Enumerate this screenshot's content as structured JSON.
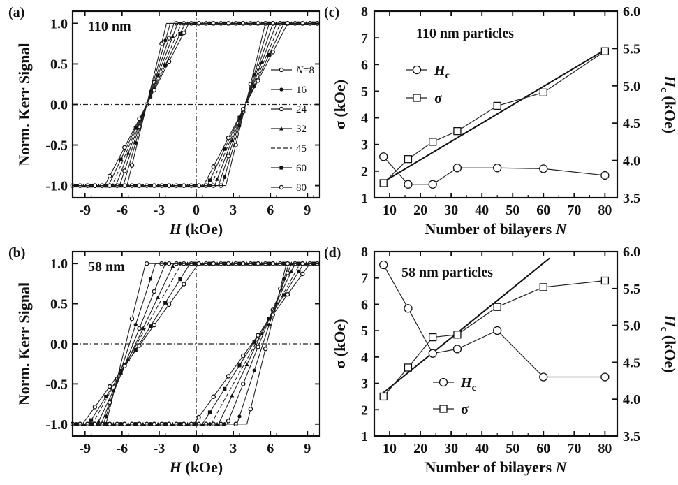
{
  "chart_data": [
    {
      "type": "line",
      "panel_label": "(a)",
      "annotation": "110 nm",
      "xlabel_italic": "H",
      "xlabel_rest": " (kOe)",
      "ylabel": "Norm. Kerr Signal",
      "xlim": [
        -10,
        10
      ],
      "ylim": [
        -1.15,
        1.15
      ],
      "xticks": [
        -9,
        -6,
        -3,
        0,
        3,
        6,
        9
      ],
      "xtick_labels": [
        "-9",
        "-6",
        "-3",
        "0",
        "3",
        "6",
        "9"
      ],
      "yticks": [
        -1.0,
        -0.5,
        0.0,
        0.5,
        1.0
      ],
      "ytick_labels": [
        "-1.0",
        "-0.5",
        "0.0",
        "0.5",
        "1.0"
      ],
      "legend": {
        "position": "lower-right",
        "entries": [
          {
            "label": "N=8",
            "italic_prefix": "N",
            "rest": "=8",
            "marker": "open-circle",
            "dash": "none"
          },
          {
            "label": "16",
            "marker": "filled-circle",
            "dash": "none"
          },
          {
            "label": "24",
            "marker": "open-circle",
            "dash": "none"
          },
          {
            "label": "32",
            "marker": "filled-triangle",
            "dash": "none"
          },
          {
            "label": "45",
            "marker": "none",
            "dash": "dashed"
          },
          {
            "label": "60",
            "marker": "filled-square",
            "dash": "none"
          },
          {
            "label": "80",
            "marker": "open-circle",
            "dash": "none"
          }
        ]
      },
      "series": [
        {
          "name": "N=8",
          "hc": 4.0,
          "slope_width": 1.6
        },
        {
          "name": "16",
          "hc": 4.0,
          "slope_width": 1.9
        },
        {
          "name": "24",
          "hc": 4.0,
          "slope_width": 2.2
        },
        {
          "name": "32",
          "hc": 4.0,
          "slope_width": 2.5
        },
        {
          "name": "45",
          "hc": 4.0,
          "slope_width": 2.8
        },
        {
          "name": "60",
          "hc": 4.0,
          "slope_width": 3.1
        },
        {
          "name": "80",
          "hc": 4.0,
          "slope_width": 3.4
        }
      ]
    },
    {
      "type": "line",
      "panel_label": "(b)",
      "annotation": "58 nm",
      "xlabel_italic": "H",
      "xlabel_rest": " (kOe)",
      "ylabel": "Norm. Kerr Signal",
      "xlim": [
        -10,
        10
      ],
      "ylim": [
        -1.15,
        1.15
      ],
      "xticks": [
        -9,
        -6,
        -3,
        0,
        3,
        6,
        9
      ],
      "xtick_labels": [
        "-9",
        "-6",
        "-3",
        "0",
        "3",
        "6",
        "9"
      ],
      "yticks": [
        -1.0,
        -0.5,
        0.0,
        0.5,
        1.0
      ],
      "ytick_labels": [
        "-1.0",
        "-0.5",
        "0.0",
        "0.5",
        "1.0"
      ],
      "series": [
        {
          "name": "8",
          "hc": 5.7,
          "slope_width": 1.6
        },
        {
          "name": "16",
          "hc": 5.4,
          "slope_width": 2.1
        },
        {
          "name": "24",
          "hc": 5.1,
          "slope_width": 2.6
        },
        {
          "name": "32",
          "hc": 4.9,
          "slope_width": 3.1
        },
        {
          "name": "45",
          "hc": 4.8,
          "slope_width": 3.6
        },
        {
          "name": "60",
          "hc": 4.6,
          "slope_width": 4.1
        },
        {
          "name": "80",
          "hc": 4.5,
          "slope_width": 4.7
        }
      ]
    },
    {
      "type": "line",
      "panel_label": "(c)",
      "annotation": "110 nm particles",
      "xlabel": "Number of bilayers ",
      "xlabel_italic": "N",
      "ylabel": "σ (kOe)",
      "ylabel_right_italic": "H",
      "ylabel_right_sub": "c",
      "ylabel_right_rest": " (kOe)",
      "xlim": [
        5,
        84
      ],
      "ylim": [
        1,
        8
      ],
      "ylim_right": [
        3.5,
        6.0
      ],
      "xticks": [
        10,
        20,
        30,
        40,
        50,
        60,
        70,
        80
      ],
      "xtick_labels": [
        "10",
        "20",
        "30",
        "40",
        "50",
        "60",
        "70",
        "80"
      ],
      "yticks": [
        1,
        2,
        3,
        4,
        5,
        6,
        7,
        8
      ],
      "ytick_labels": [
        "1",
        "2",
        "3",
        "4",
        "5",
        "6",
        "7",
        "8"
      ],
      "yticks_right": [
        3.5,
        4.0,
        4.5,
        5.0,
        5.5,
        6.0
      ],
      "ytick_labels_right": [
        "3.5",
        "4.0",
        "4.5",
        "5.0",
        "5.5",
        "6.0"
      ],
      "legend": {
        "position": "upper-left",
        "entries": [
          {
            "italic": "H",
            "sub": "c",
            "marker": "circle"
          },
          {
            "label": "σ",
            "marker": "square"
          }
        ]
      },
      "x": [
        8,
        16,
        24,
        32,
        45,
        60,
        80
      ],
      "series": [
        {
          "name": "Hc",
          "axis": "right",
          "marker": "circle",
          "values": [
            4.05,
            3.68,
            3.68,
            3.9,
            3.9,
            3.89,
            3.8
          ]
        },
        {
          "name": "σ",
          "axis": "left",
          "marker": "square",
          "values": [
            1.55,
            2.45,
            3.1,
            3.5,
            4.45,
            4.95,
            6.5
          ]
        }
      ],
      "fit_line": {
        "axis": "left",
        "x": [
          8,
          80
        ],
        "y": [
          1.6,
          6.55
        ]
      }
    },
    {
      "type": "line",
      "panel_label": "(d)",
      "annotation": "58 nm particles",
      "xlabel": "Number of bilayers ",
      "xlabel_italic": "N",
      "ylabel": "σ (kOe)",
      "ylabel_right_italic": "H",
      "ylabel_right_sub": "c",
      "ylabel_right_rest": " (kOe)",
      "xlim": [
        5,
        84
      ],
      "ylim": [
        1,
        8
      ],
      "ylim_right": [
        3.5,
        6.0
      ],
      "xticks": [
        10,
        20,
        30,
        40,
        50,
        60,
        70,
        80
      ],
      "xtick_labels": [
        "10",
        "20",
        "30",
        "40",
        "50",
        "60",
        "70",
        "80"
      ],
      "yticks": [
        1,
        2,
        3,
        4,
        5,
        6,
        7,
        8
      ],
      "ytick_labels": [
        "1",
        "2",
        "3",
        "4",
        "5",
        "6",
        "7",
        "8"
      ],
      "yticks_right": [
        3.5,
        4.0,
        4.5,
        5.0,
        5.5,
        6.0
      ],
      "ytick_labels_right": [
        "3.5",
        "4.0",
        "4.5",
        "5.0",
        "5.5",
        "6.0"
      ],
      "legend": {
        "position": "lower-left",
        "entries": [
          {
            "italic": "H",
            "sub": "c",
            "marker": "circle"
          },
          {
            "label": "σ",
            "marker": "square"
          }
        ]
      },
      "x": [
        8,
        16,
        24,
        32,
        45,
        60,
        80
      ],
      "series": [
        {
          "name": "Hc",
          "axis": "right",
          "marker": "circle",
          "values": [
            5.82,
            5.23,
            4.62,
            4.68,
            4.93,
            4.3,
            4.3
          ]
        },
        {
          "name": "σ",
          "axis": "left",
          "marker": "square",
          "values": [
            2.5,
            3.6,
            4.75,
            4.85,
            5.9,
            6.65,
            6.9
          ]
        }
      ],
      "fit_line": {
        "axis": "left",
        "x": [
          8,
          62
        ],
        "y": [
          2.65,
          7.75
        ]
      }
    }
  ]
}
